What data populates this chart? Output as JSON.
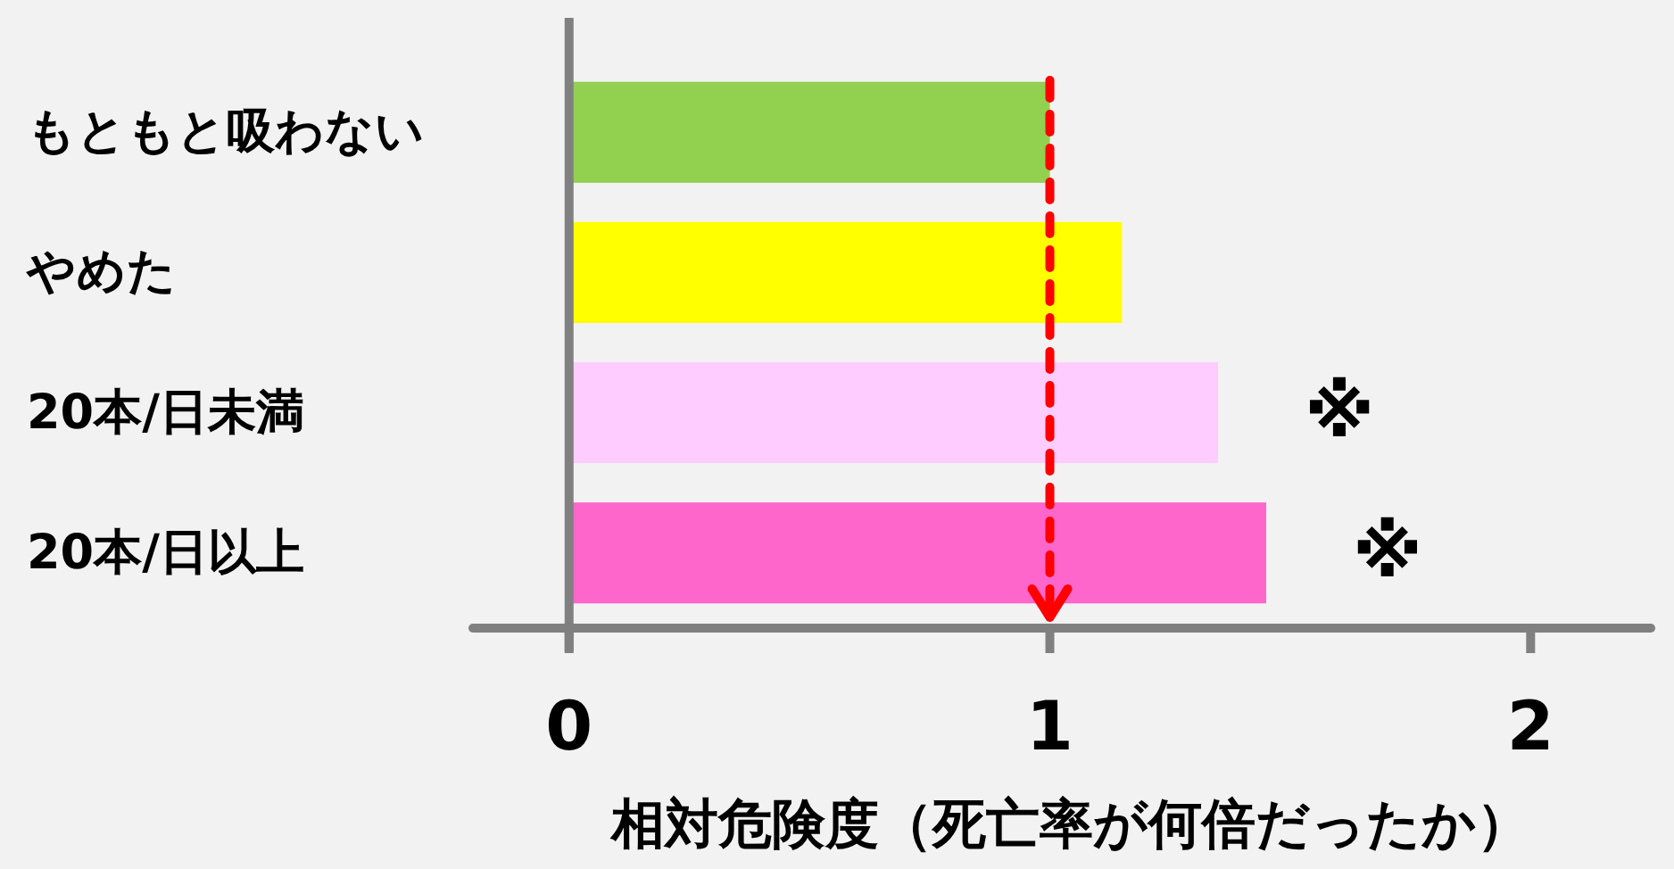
{
  "chart_data": {
    "type": "bar",
    "orientation": "horizontal",
    "xlabel": "相対危険度（死亡率が何倍だったか）",
    "categories": [
      "もともと吸わない",
      "やめた",
      "20本/日未満",
      "20本/日以上"
    ],
    "values": [
      1.0,
      1.15,
      1.35,
      1.45
    ],
    "colors": [
      "#92d050",
      "#ffff00",
      "#ffccff",
      "#ff66cc"
    ],
    "xlim": [
      -0.2,
      2.25
    ],
    "xticks": [
      0,
      1,
      2
    ],
    "grid": false,
    "ref_lines": [
      {
        "axis": "x",
        "value": 1,
        "color": "#ff0000",
        "line_style": "dashed"
      }
    ],
    "annotations": [
      "※",
      "※"
    ]
  }
}
